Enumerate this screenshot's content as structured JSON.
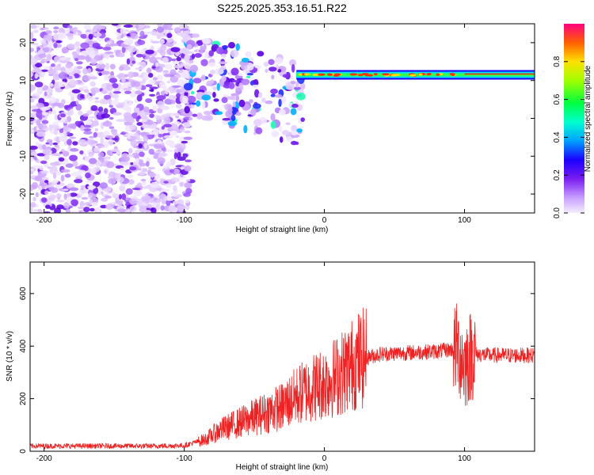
{
  "title": "S225.2025.353.16.51.R22",
  "chart_data": [
    {
      "type": "heatmap",
      "xlabel": "Height of straight line (km)",
      "ylabel": "Frequency (Hz)",
      "xlim": [
        -210,
        150
      ],
      "ylim": [
        -25,
        25
      ],
      "xticks": [
        -200,
        -100,
        0,
        100
      ],
      "yticks": [
        -20,
        -10,
        0,
        10,
        20
      ],
      "colorbar": {
        "label": "Normalized spectral amplitude",
        "range": [
          0,
          1
        ],
        "ticks": [
          0.0,
          0.2,
          0.4,
          0.6,
          0.8
        ]
      },
      "ridge": {
        "frequency": 11.5,
        "x_start": -20,
        "x_end": 150
      }
    },
    {
      "type": "line",
      "xlabel": "Height of straight line (km)",
      "ylabel": "SNR (10 * v/v)",
      "xlim": [
        -210,
        150
      ],
      "ylim": [
        0,
        720
      ],
      "xticks": [
        -200,
        -100,
        0,
        100
      ],
      "yticks": [
        0,
        200,
        400,
        600
      ],
      "color": "#ee2222",
      "x": [
        -210,
        -120,
        -100,
        -85,
        -75,
        -60,
        -45,
        -30,
        -20,
        -10,
        0,
        10,
        25,
        40,
        60,
        80,
        95,
        100,
        105,
        120,
        150
      ],
      "y": [
        20,
        20,
        22,
        45,
        80,
        110,
        140,
        170,
        210,
        240,
        260,
        290,
        350,
        370,
        375,
        380,
        390,
        330,
        370,
        365,
        365
      ]
    }
  ]
}
